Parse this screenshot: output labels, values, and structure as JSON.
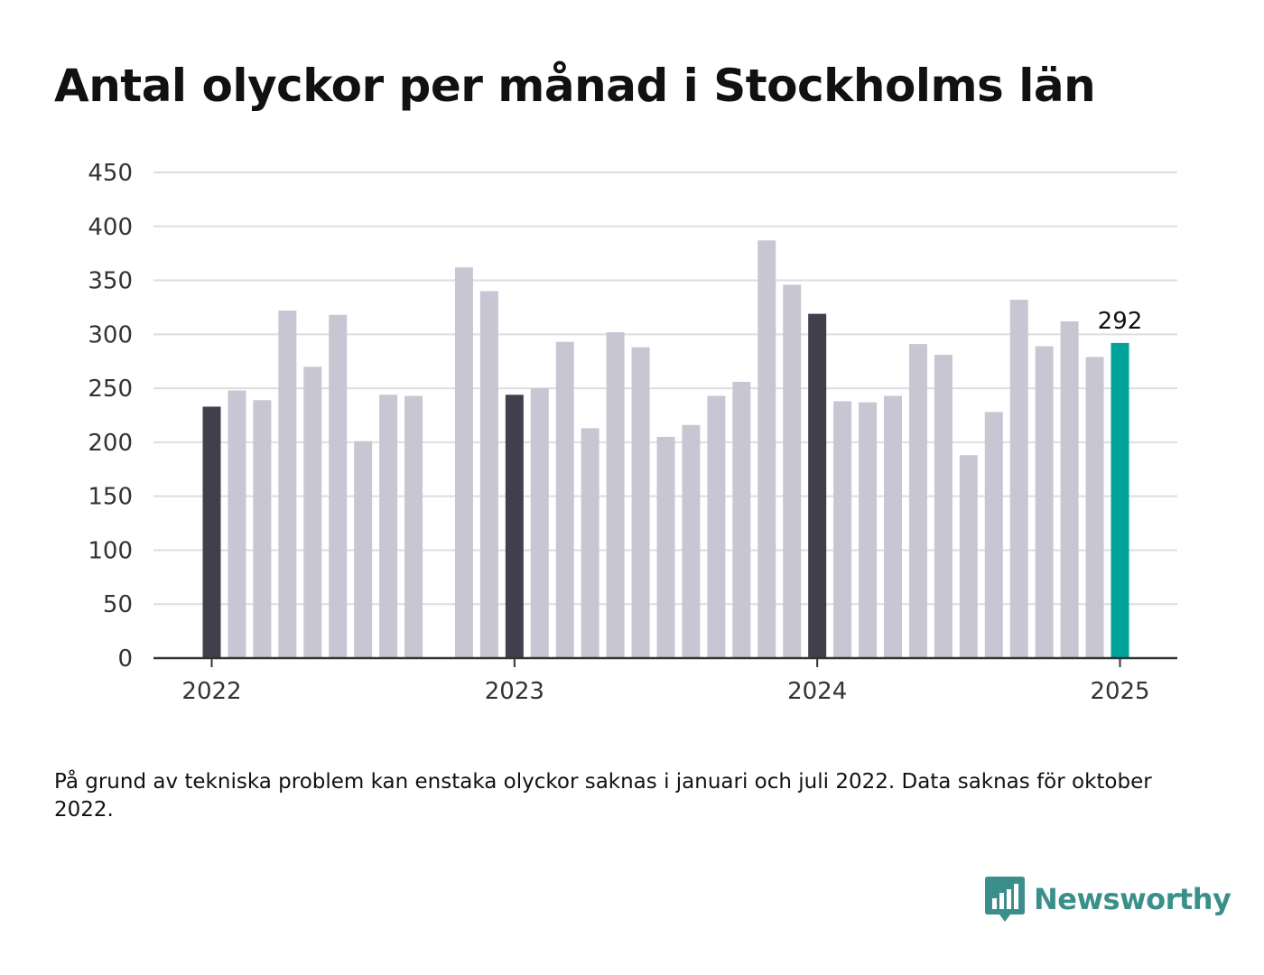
{
  "chart_data": {
    "type": "bar",
    "title": "Antal olyckor per månad i Stockholms län",
    "xlabel": "",
    "ylabel": "",
    "ylim": [
      0,
      450
    ],
    "yticks": [
      0,
      50,
      100,
      150,
      200,
      250,
      300,
      350,
      400,
      450
    ],
    "x_tick_labels": [
      "2022",
      "2023",
      "2024",
      "2025"
    ],
    "grid": true,
    "categories": [
      "2022-01",
      "2022-02",
      "2022-03",
      "2022-04",
      "2022-05",
      "2022-06",
      "2022-07",
      "2022-08",
      "2022-09",
      "2022-10",
      "2022-11",
      "2022-12",
      "2023-01",
      "2023-02",
      "2023-03",
      "2023-04",
      "2023-05",
      "2023-06",
      "2023-07",
      "2023-08",
      "2023-09",
      "2023-10",
      "2023-11",
      "2023-12",
      "2024-01",
      "2024-02",
      "2024-03",
      "2024-04",
      "2024-05",
      "2024-06",
      "2024-07",
      "2024-08",
      "2024-09",
      "2024-10",
      "2024-11",
      "2024-12",
      "2025-01"
    ],
    "values": [
      233,
      248,
      239,
      322,
      270,
      318,
      201,
      244,
      243,
      null,
      362,
      340,
      244,
      250,
      293,
      213,
      302,
      288,
      205,
      216,
      243,
      256,
      387,
      346,
      319,
      238,
      237,
      243,
      291,
      281,
      188,
      228,
      332,
      289,
      312,
      279,
      292
    ],
    "january_indices": [
      0,
      12,
      24
    ],
    "highlight_index": 36,
    "highlight_label": "292",
    "colors": {
      "bar": "#c8c6d3",
      "january": "#403f4c",
      "highlight": "#00a39a",
      "grid": "#dddddd",
      "axis": "#333333"
    }
  },
  "note": "På grund av tekniska problem kan enstaka olyckor saknas i januari och juli 2022. Data saknas för oktober 2022.",
  "brand": {
    "name": "Newsworthy",
    "color": "#3a8f8a",
    "icon": "bar-chart-bubble-icon"
  }
}
